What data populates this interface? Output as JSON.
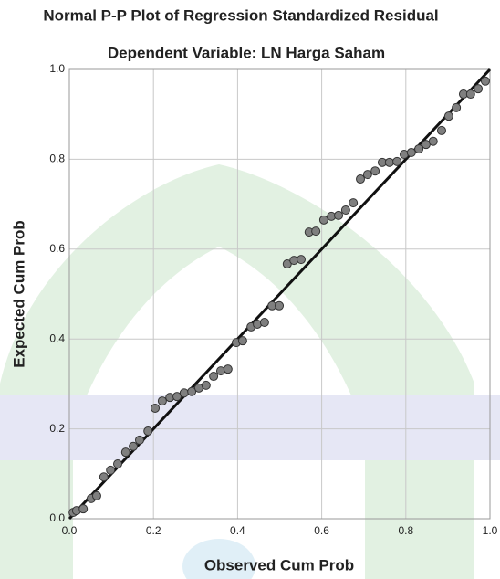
{
  "chart_data": {
    "type": "scatter",
    "title": "Normal P-P Plot of Regression Standardized Residual",
    "subtitle": "Dependent Variable: LN Harga Saham",
    "x_label": "Observed Cum Prob",
    "y_label": "Expected Cum Prob",
    "color": "#7f7f7f",
    "grid": true,
    "xlim": [
      0,
      1
    ],
    "ylim": [
      0,
      1
    ],
    "xticks": [
      {
        "value": 0,
        "label": "0.0"
      },
      0.2,
      0.4,
      0.6,
      0.8,
      {
        "value": 1,
        "label": "1.0"
      }
    ],
    "yticks": [
      {
        "value": 0,
        "label": "0.0"
      },
      0.2,
      0.4,
      0.6,
      0.8,
      {
        "value": 1,
        "label": "1.0"
      }
    ],
    "x": [
      0.009,
      0.017,
      0.033,
      0.052,
      0.065,
      0.082,
      0.098,
      0.115,
      0.134,
      0.152,
      0.167,
      0.187,
      0.204,
      0.221,
      0.239,
      0.256,
      0.273,
      0.291,
      0.308,
      0.325,
      0.343,
      0.36,
      0.377,
      0.397,
      0.412,
      0.432,
      0.447,
      0.464,
      0.482,
      0.499,
      0.518,
      0.534,
      0.551,
      0.57,
      0.586,
      0.605,
      0.623,
      0.64,
      0.657,
      0.675,
      0.692,
      0.709,
      0.727,
      0.744,
      0.761,
      0.779,
      0.796,
      0.813,
      0.831,
      0.848,
      0.865,
      0.885,
      0.902,
      0.92,
      0.937,
      0.954,
      0.972,
      0.989
    ],
    "values": [
      0.014,
      0.018,
      0.022,
      0.045,
      0.051,
      0.093,
      0.108,
      0.122,
      0.148,
      0.161,
      0.175,
      0.195,
      0.246,
      0.262,
      0.27,
      0.272,
      0.28,
      0.283,
      0.291,
      0.297,
      0.317,
      0.329,
      0.333,
      0.392,
      0.396,
      0.427,
      0.433,
      0.437,
      0.474,
      0.474,
      0.567,
      0.575,
      0.577,
      0.638,
      0.64,
      0.665,
      0.673,
      0.675,
      0.687,
      0.703,
      0.756,
      0.766,
      0.774,
      0.793,
      0.793,
      0.795,
      0.811,
      0.815,
      0.823,
      0.833,
      0.84,
      0.864,
      0.896,
      0.915,
      0.945,
      0.945,
      0.957,
      0.974
    ]
  }
}
